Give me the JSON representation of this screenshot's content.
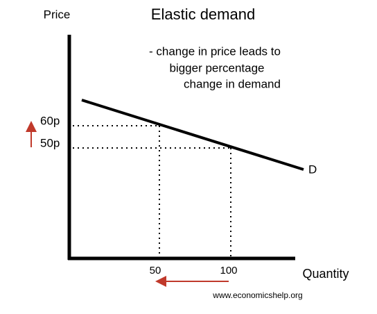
{
  "header": {
    "title": "Elastic demand",
    "y_axis_label": "Price",
    "x_axis_label": "Quantity"
  },
  "annotation": [
    "- change in price leads to",
    "bigger percentage",
    "change in demand"
  ],
  "price_labels": [
    "60p",
    "50p"
  ],
  "quantity_labels": [
    "50",
    "100"
  ],
  "curve_label": "D",
  "footer": "www.economicshelp.org"
}
